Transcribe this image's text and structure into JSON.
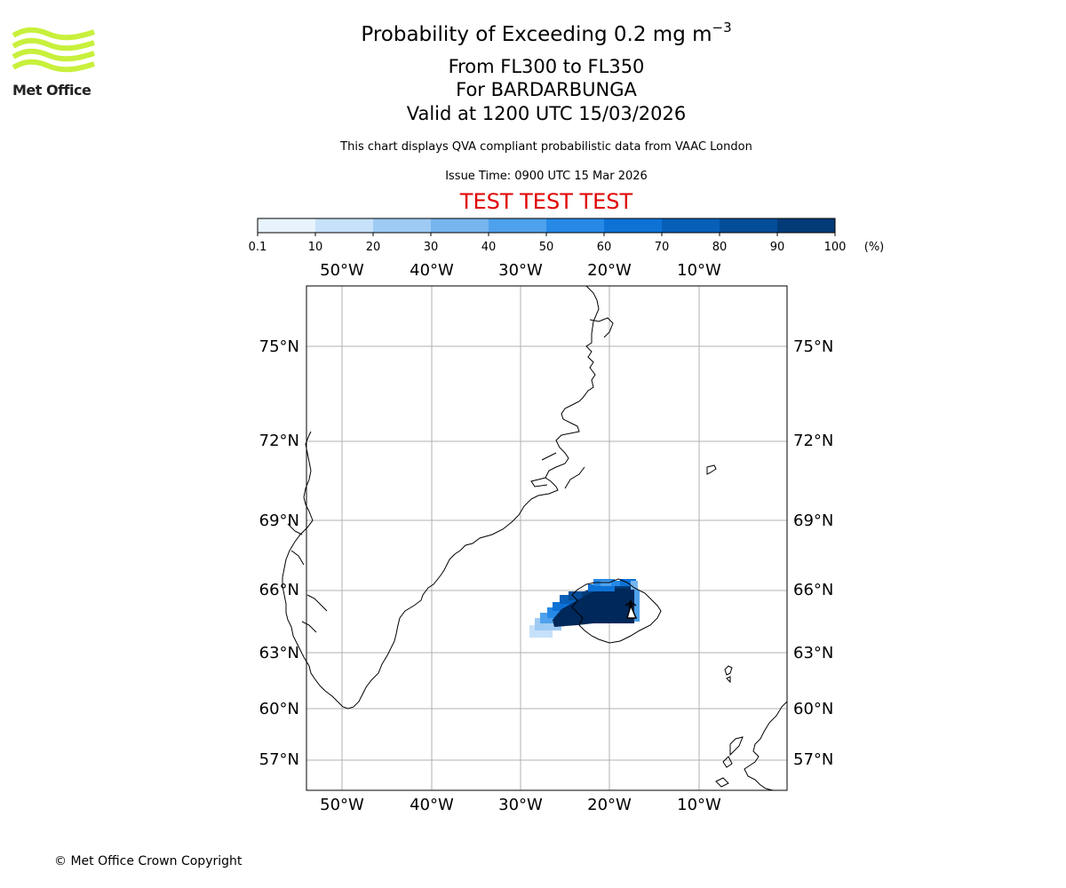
{
  "header": {
    "title_prefix": "Probability of Exceeding 0.2 mg m",
    "title_exponent": "−3",
    "levels": "From FL300 to FL350",
    "volcano": "For BARDARBUNGA",
    "valid": "Valid at 1200 UTC 15/03/2026",
    "description": "This chart displays QVA compliant probabilistic data from VAAC London",
    "issue_time": "Issue Time: 0900 UTC 15 Mar 2026",
    "test_banner": "TEST TEST TEST"
  },
  "logo": {
    "text": "Met Office",
    "wave_color": "#c8f03c"
  },
  "colorbar": {
    "ticks": [
      "0.1",
      "10",
      "20",
      "30",
      "40",
      "50",
      "60",
      "70",
      "80",
      "90",
      "100"
    ],
    "colors": [
      "#e8f3fd",
      "#c6e1f9",
      "#9ecbf4",
      "#76b5ef",
      "#4ea1ec",
      "#2689e6",
      "#0d72d6",
      "#075fb8",
      "#044d98",
      "#023b78",
      "#01285a"
    ],
    "unit": "(%)"
  },
  "map": {
    "lon_labels_top": [
      "50°W",
      "40°W",
      "30°W",
      "20°W",
      "10°W"
    ],
    "lon_labels_bottom": [
      "50°W",
      "40°W",
      "30°W",
      "20°W",
      "10°W"
    ],
    "lat_labels_left": [
      "75°N",
      "72°N",
      "69°N",
      "66°N",
      "63°N",
      "60°N",
      "57°N"
    ],
    "lat_labels_right": [
      "75°N",
      "72°N",
      "69°N",
      "66°N",
      "63°N",
      "60°N",
      "57°N"
    ],
    "gridlines": true,
    "volcano_marker": "volcano-icon"
  },
  "footer": {
    "copyright": "© Met Office Crown Copyright"
  }
}
